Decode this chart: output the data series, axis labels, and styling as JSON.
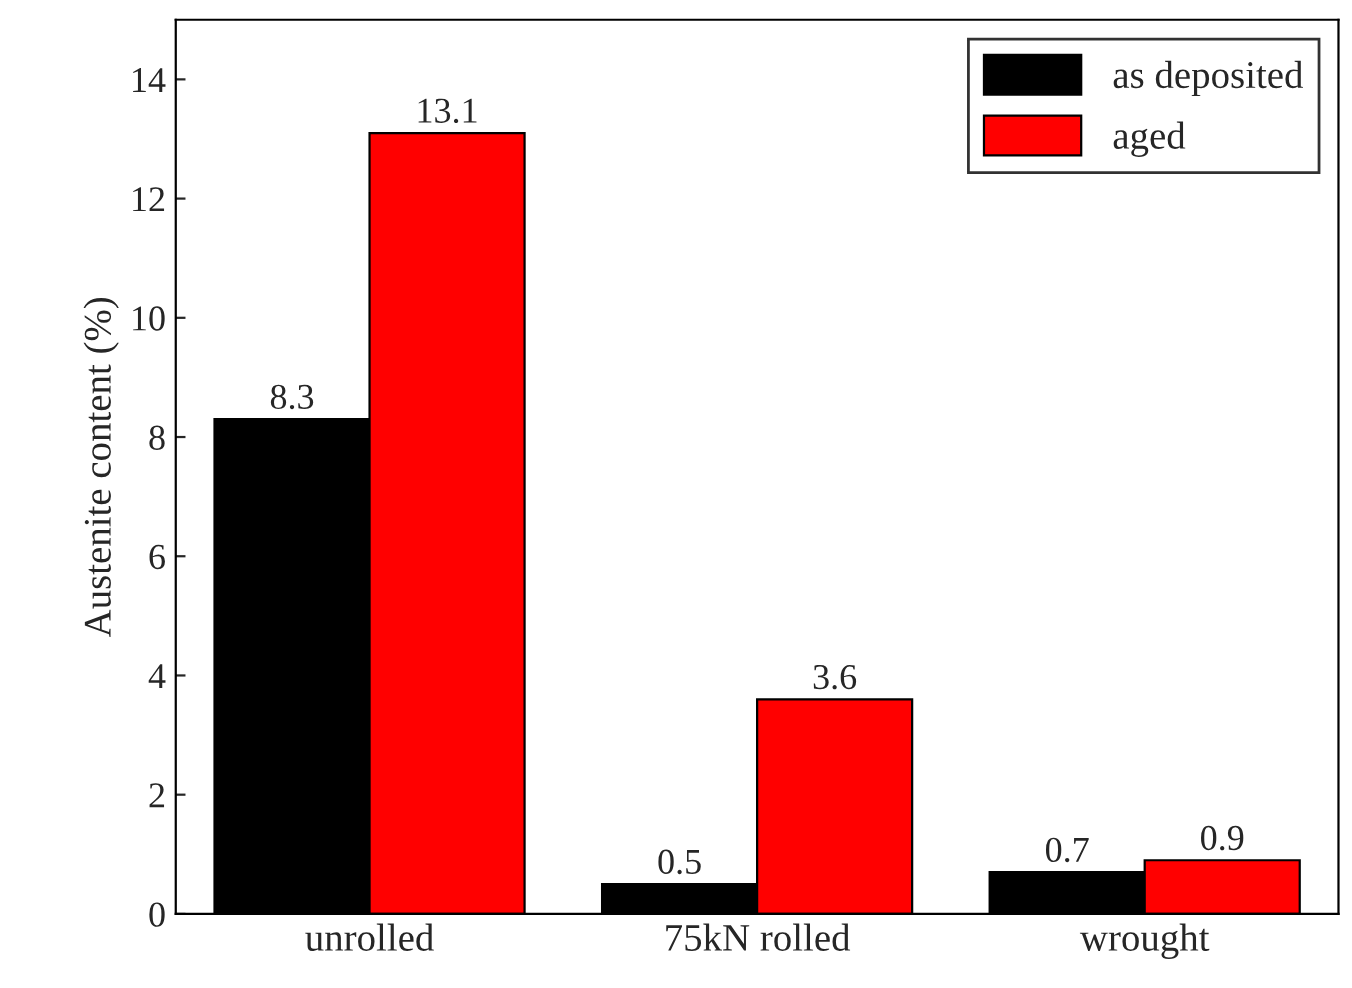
{
  "chart_data": {
    "type": "bar",
    "ylabel": "Austenite content (%)",
    "categories": [
      "unrolled",
      "75kN rolled",
      "wrought"
    ],
    "series": [
      {
        "name": "as deposited",
        "color": "#000000",
        "values": [
          8.3,
          0.5,
          0.7
        ]
      },
      {
        "name": "aged",
        "color": "#ff0000",
        "values": [
          13.1,
          3.6,
          0.9
        ]
      }
    ],
    "ylim": [
      0,
      15
    ],
    "yticks": [
      0,
      2,
      4,
      6,
      8,
      10,
      12,
      14
    ],
    "data_labels": true,
    "grid": false,
    "legend": "top right"
  }
}
